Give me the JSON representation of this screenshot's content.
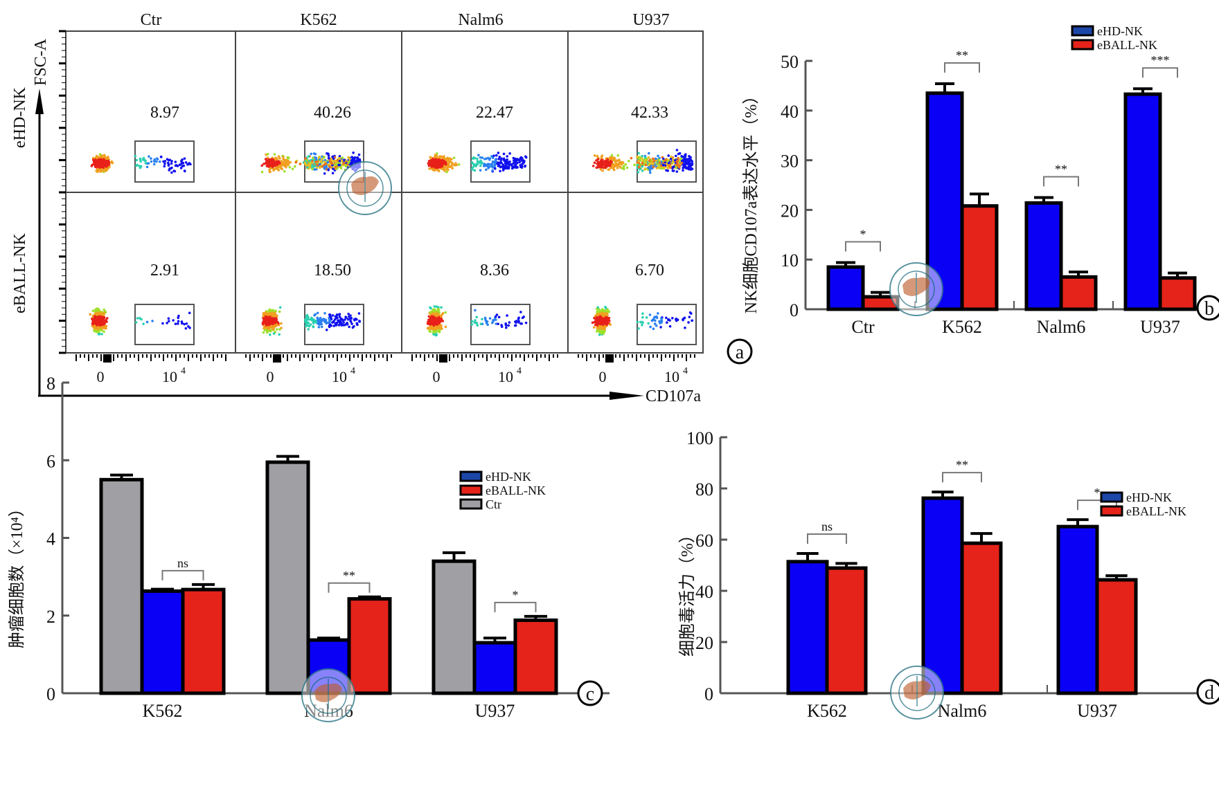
{
  "colors": {
    "ehd": "#0a00f5",
    "eball": "#e5231a",
    "ctr": "#a0a0a4",
    "axis": "#555555",
    "seal_ring": "#3a7f8f",
    "seal_map": "#c97a52"
  },
  "panel_a": {
    "label": "a",
    "x_axis_label": "CD107a",
    "y_axis_label": "FSC-A",
    "columns": [
      "Ctr",
      "K562",
      "Nalm6",
      "U937"
    ],
    "rows": [
      "eHD-NK",
      "eBALL-NK"
    ],
    "x_ticks": [
      "0",
      "10",
      "4"
    ],
    "percentages": [
      [
        "8.97",
        "40.26",
        "22.47",
        "42.33"
      ],
      [
        "2.91",
        "18.50",
        "8.36",
        "6.70"
      ]
    ]
  },
  "chart_data": [
    {
      "id": "b",
      "type": "bar",
      "panel_label": "b",
      "title": "",
      "xlabel": "",
      "ylabel": "NK细胞CD107a表达水平（%）",
      "ylim": [
        0,
        50
      ],
      "yticks": [
        0,
        10,
        20,
        30,
        40,
        50
      ],
      "categories": [
        "Ctr",
        "K562",
        "Nalm6",
        "U937"
      ],
      "legend": [
        "eHD-NK",
        "eBALL-NK"
      ],
      "legend_position": "top-right",
      "series": [
        {
          "name": "eHD-NK",
          "color_key": "ehd",
          "values": [
            8.5,
            43.5,
            21.4,
            43.3
          ],
          "errors": [
            0.9,
            1.9,
            1.1,
            1.1
          ]
        },
        {
          "name": "eBALL-NK",
          "color_key": "eball",
          "values": [
            2.5,
            20.8,
            6.5,
            6.3
          ],
          "errors": [
            0.9,
            2.4,
            1.0,
            1.0
          ]
        }
      ],
      "significance": [
        "*",
        "**",
        "**",
        "***"
      ]
    },
    {
      "id": "c",
      "type": "bar",
      "panel_label": "c",
      "title": "",
      "xlabel": "",
      "ylabel": "肿瘤细胞数（×10⁴）",
      "ylim": [
        0,
        8
      ],
      "yticks": [
        0,
        2,
        4,
        6,
        8
      ],
      "categories": [
        "K562",
        "Nalm6",
        "U937"
      ],
      "legend": [
        "eHD-NK",
        "eBALL-NK",
        "Ctr"
      ],
      "legend_position": "top-right",
      "series": [
        {
          "name": "Ctr",
          "color_key": "ctr",
          "values": [
            5.5,
            5.95,
            3.4
          ],
          "errors": [
            0.12,
            0.15,
            0.22
          ]
        },
        {
          "name": "eHD-NK",
          "color_key": "ehd",
          "values": [
            2.63,
            1.37,
            1.3
          ],
          "errors": [
            0.05,
            0.05,
            0.12
          ]
        },
        {
          "name": "eBALL-NK",
          "color_key": "eball",
          "values": [
            2.67,
            2.43,
            1.88
          ],
          "errors": [
            0.13,
            0.05,
            0.1
          ]
        }
      ],
      "significance": [
        "ns",
        "**",
        "*"
      ]
    },
    {
      "id": "d",
      "type": "bar",
      "panel_label": "d",
      "title": "",
      "xlabel": "",
      "ylabel": "细胞毒活力（%）",
      "ylim": [
        0,
        100
      ],
      "yticks": [
        0,
        20,
        40,
        60,
        80,
        100
      ],
      "categories": [
        "K562",
        "Nalm6",
        "U937"
      ],
      "legend": [
        "eHD-NK",
        "eBALL-NK"
      ],
      "legend_position": "top-right",
      "series": [
        {
          "name": "eHD-NK",
          "color_key": "ehd",
          "values": [
            51.4,
            76.2,
            65.1
          ],
          "errors": [
            3.2,
            2.4,
            2.7
          ]
        },
        {
          "name": "eBALL-NK",
          "color_key": "eball",
          "values": [
            48.9,
            58.6,
            44.3
          ],
          "errors": [
            1.8,
            3.8,
            1.6
          ]
        }
      ],
      "significance": [
        "ns",
        "**",
        "*"
      ]
    }
  ]
}
